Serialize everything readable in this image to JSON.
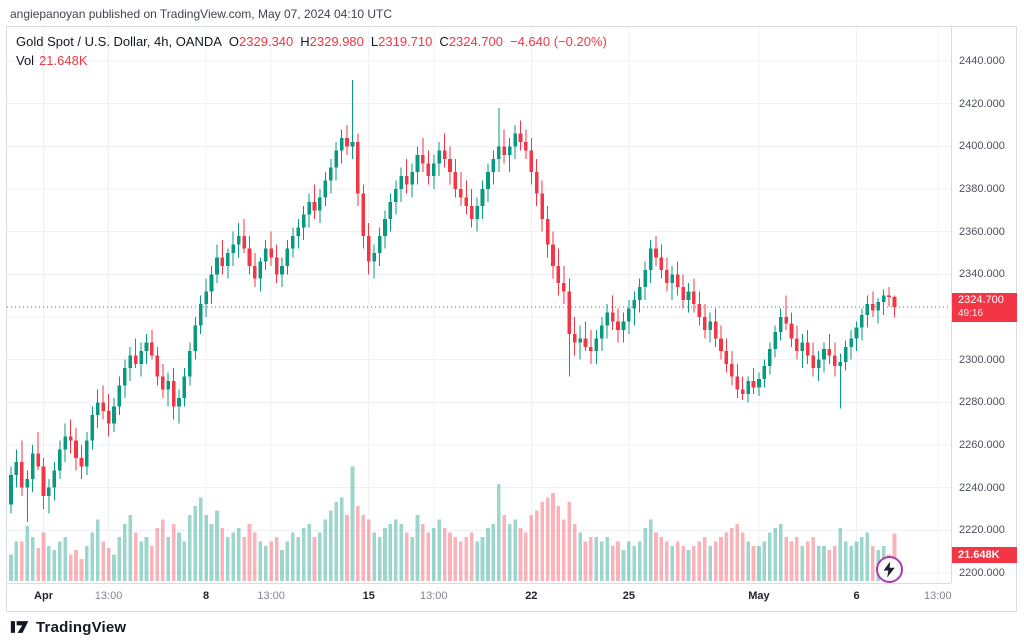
{
  "attribution": "angiepanoyan published on TradingView.com, May 07, 2024 04:10 UTC",
  "legend": {
    "title": "Gold Spot / U.S. Dollar, 4h, OANDA",
    "ohlc": [
      {
        "k": "O",
        "v": "2329.340"
      },
      {
        "k": "H",
        "v": "2329.980"
      },
      {
        "k": "L",
        "v": "2319.710"
      },
      {
        "k": "C",
        "v": "2324.700"
      }
    ],
    "change": "−4.640 (−0.20%)",
    "vol_label": "Vol",
    "vol_value": "21.648K"
  },
  "price_badge": {
    "price": "2324.700",
    "countdown": "49:16"
  },
  "volume_badge": "21.648K",
  "footer": {
    "brand": "TradingView"
  },
  "colors": {
    "up": "#089981",
    "down": "#F23645",
    "vol_up": "rgba(8,153,129,0.40)",
    "vol_down": "rgba(242,54,69,0.38)",
    "grid": "#eef1f7",
    "badge_bg": "#F23645"
  },
  "chart_data": {
    "type": "candlestick",
    "title": "Gold Spot / U.S. Dollar",
    "interval": "4h",
    "exchange": "OANDA",
    "legend_note": "volume pane overlaid at bottom, units in K",
    "ylim": [
      2200,
      2440
    ],
    "last_price": 2324.7,
    "last_volume_k": 21.648,
    "y_axis": {
      "ticks": [
        2440,
        2420,
        2400,
        2380,
        2360,
        2340,
        2320,
        2300,
        2280,
        2260,
        2240,
        2220,
        2200
      ],
      "labels": [
        "2440.000",
        "2420.000",
        "2400.000",
        "2380.000",
        "2360.000",
        "2340.000",
        "2320.000",
        "2300.000",
        "2280.000",
        "2260.000",
        "2240.000",
        "2220.000",
        "2200.000"
      ]
    },
    "x_ticks": [
      {
        "label": "Apr",
        "i": 6,
        "major": true
      },
      {
        "label": "13:00",
        "i": 18,
        "major": false
      },
      {
        "label": "8",
        "i": 36,
        "major": true
      },
      {
        "label": "13:00",
        "i": 48,
        "major": false
      },
      {
        "label": "15",
        "i": 66,
        "major": true
      },
      {
        "label": "13:00",
        "i": 78,
        "major": false
      },
      {
        "label": "22",
        "i": 96,
        "major": true
      },
      {
        "label": "25",
        "i": 114,
        "major": true
      },
      {
        "label": "May",
        "i": 138,
        "major": true
      },
      {
        "label": "6",
        "i": 156,
        "major": true
      },
      {
        "label": "13:00",
        "i": 171,
        "major": false
      }
    ],
    "candles_format": [
      "open",
      "high",
      "low",
      "close",
      "volume_k"
    ],
    "candles": [
      [
        2232,
        2250,
        2228,
        2246,
        12
      ],
      [
        2246,
        2258,
        2240,
        2252,
        18
      ],
      [
        2252,
        2262,
        2236,
        2240,
        18
      ],
      [
        2240,
        2248,
        2224,
        2244,
        25
      ],
      [
        2244,
        2260,
        2238,
        2256,
        20
      ],
      [
        2256,
        2266,
        2248,
        2250,
        15
      ],
      [
        2250,
        2254,
        2230,
        2236,
        22
      ],
      [
        2236,
        2244,
        2228,
        2240,
        16
      ],
      [
        2240,
        2252,
        2234,
        2248,
        14
      ],
      [
        2248,
        2262,
        2244,
        2258,
        18
      ],
      [
        2258,
        2270,
        2252,
        2264,
        20
      ],
      [
        2264,
        2272,
        2256,
        2262,
        12
      ],
      [
        2262,
        2268,
        2248,
        2254,
        14
      ],
      [
        2254,
        2260,
        2244,
        2250,
        10
      ],
      [
        2250,
        2266,
        2246,
        2262,
        16
      ],
      [
        2262,
        2278,
        2258,
        2274,
        22
      ],
      [
        2274,
        2286,
        2268,
        2280,
        28
      ],
      [
        2280,
        2288,
        2272,
        2276,
        18
      ],
      [
        2276,
        2284,
        2264,
        2270,
        15
      ],
      [
        2270,
        2282,
        2266,
        2278,
        12
      ],
      [
        2278,
        2292,
        2274,
        2288,
        20
      ],
      [
        2288,
        2300,
        2282,
        2296,
        26
      ],
      [
        2296,
        2306,
        2290,
        2302,
        30
      ],
      [
        2302,
        2310,
        2296,
        2298,
        22
      ],
      [
        2298,
        2308,
        2292,
        2304,
        18
      ],
      [
        2304,
        2312,
        2298,
        2308,
        20
      ],
      [
        2308,
        2314,
        2300,
        2302,
        16
      ],
      [
        2302,
        2306,
        2288,
        2292,
        24
      ],
      [
        2292,
        2298,
        2282,
        2286,
        28
      ],
      [
        2286,
        2294,
        2278,
        2290,
        20
      ],
      [
        2290,
        2296,
        2272,
        2278,
        26
      ],
      [
        2278,
        2286,
        2270,
        2282,
        22
      ],
      [
        2282,
        2296,
        2278,
        2292,
        18
      ],
      [
        2292,
        2308,
        2288,
        2304,
        30
      ],
      [
        2304,
        2320,
        2300,
        2316,
        34
      ],
      [
        2316,
        2330,
        2312,
        2326,
        38
      ],
      [
        2326,
        2338,
        2320,
        2332,
        30
      ],
      [
        2332,
        2344,
        2326,
        2340,
        26
      ],
      [
        2340,
        2354,
        2336,
        2348,
        32
      ],
      [
        2348,
        2356,
        2340,
        2344,
        24
      ],
      [
        2344,
        2352,
        2338,
        2350,
        20
      ],
      [
        2350,
        2360,
        2344,
        2354,
        22
      ],
      [
        2354,
        2364,
        2348,
        2358,
        24
      ],
      [
        2358,
        2366,
        2350,
        2352,
        20
      ],
      [
        2352,
        2358,
        2340,
        2344,
        26
      ],
      [
        2344,
        2350,
        2334,
        2338,
        22
      ],
      [
        2338,
        2348,
        2332,
        2346,
        18
      ],
      [
        2346,
        2356,
        2342,
        2352,
        16
      ],
      [
        2352,
        2360,
        2344,
        2348,
        18
      ],
      [
        2348,
        2354,
        2336,
        2340,
        20
      ],
      [
        2340,
        2348,
        2334,
        2344,
        14
      ],
      [
        2344,
        2356,
        2340,
        2352,
        18
      ],
      [
        2352,
        2362,
        2348,
        2358,
        22
      ],
      [
        2358,
        2366,
        2352,
        2362,
        20
      ],
      [
        2362,
        2372,
        2356,
        2368,
        24
      ],
      [
        2368,
        2378,
        2362,
        2374,
        26
      ],
      [
        2374,
        2382,
        2366,
        2370,
        20
      ],
      [
        2370,
        2380,
        2364,
        2376,
        22
      ],
      [
        2376,
        2388,
        2372,
        2384,
        28
      ],
      [
        2384,
        2394,
        2378,
        2390,
        32
      ],
      [
        2390,
        2402,
        2384,
        2398,
        36
      ],
      [
        2398,
        2408,
        2392,
        2404,
        38
      ],
      [
        2404,
        2410,
        2396,
        2400,
        30
      ],
      [
        2400,
        2431,
        2394,
        2402,
        52
      ],
      [
        2402,
        2406,
        2372,
        2378,
        34
      ],
      [
        2378,
        2382,
        2352,
        2358,
        30
      ],
      [
        2358,
        2364,
        2340,
        2346,
        28
      ],
      [
        2346,
        2354,
        2338,
        2350,
        22
      ],
      [
        2350,
        2362,
        2344,
        2358,
        20
      ],
      [
        2358,
        2370,
        2352,
        2366,
        24
      ],
      [
        2366,
        2378,
        2360,
        2374,
        26
      ],
      [
        2374,
        2384,
        2368,
        2380,
        28
      ],
      [
        2380,
        2390,
        2374,
        2386,
        26
      ],
      [
        2386,
        2394,
        2378,
        2382,
        22
      ],
      [
        2382,
        2392,
        2376,
        2388,
        20
      ],
      [
        2388,
        2400,
        2382,
        2396,
        30
      ],
      [
        2396,
        2404,
        2388,
        2392,
        26
      ],
      [
        2392,
        2398,
        2382,
        2386,
        22
      ],
      [
        2386,
        2396,
        2380,
        2392,
        24
      ],
      [
        2392,
        2402,
        2386,
        2398,
        28
      ],
      [
        2398,
        2406,
        2390,
        2394,
        24
      ],
      [
        2394,
        2400,
        2382,
        2388,
        22
      ],
      [
        2388,
        2394,
        2376,
        2380,
        20
      ],
      [
        2380,
        2388,
        2372,
        2376,
        18
      ],
      [
        2376,
        2384,
        2368,
        2372,
        20
      ],
      [
        2372,
        2380,
        2362,
        2366,
        22
      ],
      [
        2366,
        2376,
        2360,
        2372,
        18
      ],
      [
        2372,
        2384,
        2366,
        2380,
        20
      ],
      [
        2380,
        2392,
        2374,
        2388,
        24
      ],
      [
        2388,
        2398,
        2382,
        2394,
        26
      ],
      [
        2394,
        2418,
        2388,
        2400,
        44
      ],
      [
        2400,
        2408,
        2392,
        2396,
        30
      ],
      [
        2396,
        2404,
        2388,
        2400,
        26
      ],
      [
        2400,
        2410,
        2394,
        2406,
        28
      ],
      [
        2406,
        2412,
        2398,
        2402,
        24
      ],
      [
        2402,
        2408,
        2394,
        2398,
        22
      ],
      [
        2398,
        2404,
        2382,
        2388,
        30
      ],
      [
        2388,
        2394,
        2372,
        2378,
        32
      ],
      [
        2378,
        2384,
        2360,
        2366,
        36
      ],
      [
        2366,
        2372,
        2348,
        2354,
        38
      ],
      [
        2354,
        2360,
        2338,
        2344,
        40
      ],
      [
        2344,
        2352,
        2330,
        2336,
        34
      ],
      [
        2336,
        2344,
        2326,
        2332,
        28
      ],
      [
        2332,
        2338,
        2292,
        2312,
        36
      ],
      [
        2312,
        2320,
        2302,
        2308,
        26
      ],
      [
        2308,
        2316,
        2300,
        2310,
        22
      ],
      [
        2310,
        2318,
        2304,
        2306,
        18
      ],
      [
        2306,
        2314,
        2298,
        2304,
        20
      ],
      [
        2304,
        2314,
        2298,
        2310,
        20
      ],
      [
        2310,
        2320,
        2304,
        2316,
        18
      ],
      [
        2316,
        2326,
        2310,
        2322,
        20
      ],
      [
        2322,
        2330,
        2314,
        2318,
        16
      ],
      [
        2318,
        2324,
        2308,
        2314,
        18
      ],
      [
        2314,
        2322,
        2308,
        2318,
        14
      ],
      [
        2318,
        2328,
        2312,
        2324,
        18
      ],
      [
        2324,
        2332,
        2316,
        2328,
        16
      ],
      [
        2328,
        2338,
        2322,
        2334,
        18
      ],
      [
        2334,
        2346,
        2328,
        2342,
        24
      ],
      [
        2342,
        2356,
        2336,
        2352,
        28
      ],
      [
        2352,
        2358,
        2344,
        2348,
        22
      ],
      [
        2348,
        2354,
        2338,
        2342,
        20
      ],
      [
        2342,
        2348,
        2332,
        2336,
        18
      ],
      [
        2336,
        2344,
        2328,
        2340,
        16
      ],
      [
        2340,
        2346,
        2330,
        2334,
        18
      ],
      [
        2334,
        2340,
        2324,
        2328,
        16
      ],
      [
        2328,
        2336,
        2322,
        2332,
        14
      ],
      [
        2332,
        2338,
        2322,
        2326,
        16
      ],
      [
        2326,
        2332,
        2316,
        2320,
        18
      ],
      [
        2320,
        2326,
        2310,
        2314,
        20
      ],
      [
        2314,
        2322,
        2308,
        2318,
        16
      ],
      [
        2318,
        2324,
        2306,
        2310,
        18
      ],
      [
        2310,
        2316,
        2300,
        2304,
        20
      ],
      [
        2304,
        2310,
        2294,
        2298,
        22
      ],
      [
        2298,
        2304,
        2288,
        2292,
        24
      ],
      [
        2292,
        2298,
        2282,
        2286,
        26
      ],
      [
        2286,
        2292,
        2281,
        2284,
        22
      ],
      [
        2284,
        2292,
        2280,
        2290,
        18
      ],
      [
        2290,
        2296,
        2284,
        2287,
        16
      ],
      [
        2287,
        2294,
        2283,
        2291,
        16
      ],
      [
        2291,
        2300,
        2287,
        2297,
        18
      ],
      [
        2297,
        2308,
        2293,
        2305,
        22
      ],
      [
        2305,
        2316,
        2301,
        2313,
        24
      ],
      [
        2313,
        2324,
        2309,
        2320,
        26
      ],
      [
        2320,
        2330,
        2314,
        2317,
        20
      ],
      [
        2317,
        2322,
        2306,
        2310,
        18
      ],
      [
        2310,
        2316,
        2300,
        2304,
        20
      ],
      [
        2304,
        2312,
        2296,
        2308,
        16
      ],
      [
        2308,
        2314,
        2298,
        2302,
        18
      ],
      [
        2302,
        2308,
        2292,
        2296,
        20
      ],
      [
        2296,
        2304,
        2290,
        2300,
        16
      ],
      [
        2300,
        2308,
        2294,
        2305,
        16
      ],
      [
        2305,
        2312,
        2298,
        2302,
        14
      ],
      [
        2302,
        2308,
        2292,
        2297,
        16
      ],
      [
        2297,
        2303,
        2277,
        2299,
        24
      ],
      [
        2299,
        2309,
        2295,
        2306,
        18
      ],
      [
        2306,
        2314,
        2300,
        2310,
        16
      ],
      [
        2310,
        2318,
        2304,
        2315,
        18
      ],
      [
        2315,
        2324,
        2309,
        2321,
        20
      ],
      [
        2321,
        2330,
        2315,
        2326,
        22
      ],
      [
        2326,
        2332,
        2320,
        2323,
        16
      ],
      [
        2323,
        2329,
        2317,
        2327,
        14
      ],
      [
        2327,
        2333,
        2321,
        2330,
        16
      ],
      [
        2330,
        2334,
        2325,
        2329.3,
        12
      ],
      [
        2329.34,
        2329.98,
        2319.71,
        2324.7,
        21.648
      ]
    ]
  }
}
